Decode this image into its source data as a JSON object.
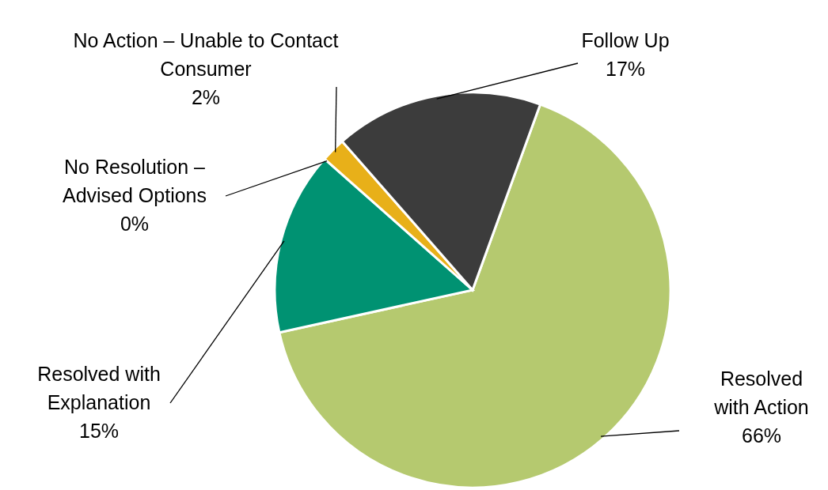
{
  "chart_data": {
    "type": "pie",
    "categories": [
      "Resolved with Action",
      "Resolved with Explanation",
      "No Resolution – Advised Options",
      "No Action – Unable to Contact Consumer",
      "Follow Up"
    ],
    "values": [
      66,
      15,
      0,
      2,
      17
    ],
    "value_labels": [
      "66%",
      "15%",
      "0%",
      "2%",
      "17%"
    ],
    "colors": [
      "#b5c96f",
      "#009272",
      "#7f7f7f",
      "#e8b019",
      "#3c3c3c"
    ]
  }
}
